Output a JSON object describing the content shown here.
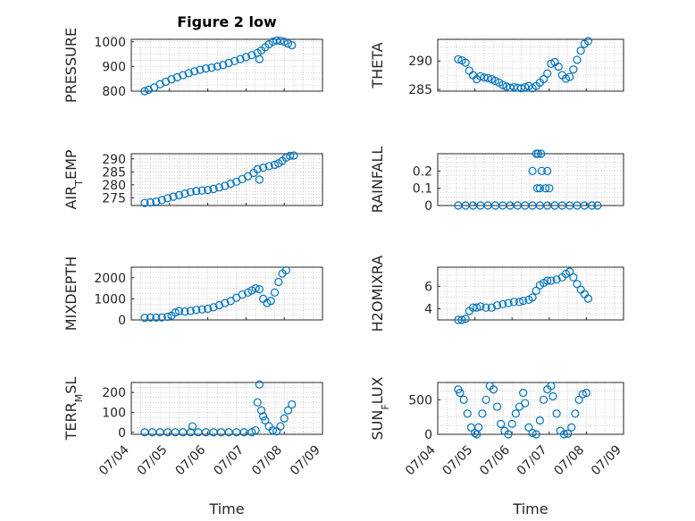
{
  "colors": {
    "marker": "#0072BD",
    "axis": "#262626",
    "grid": "#b0b0b0"
  },
  "chart_data": [
    {
      "id": "pressure",
      "type": "scatter",
      "title": "Figure 2 low",
      "ylabel": "PRESSURE",
      "xlabel": "",
      "ylim": [
        800,
        1010
      ],
      "yticks": [
        800,
        900,
        1000
      ],
      "xlim": [
        0,
        5
      ],
      "xticks": [
        0,
        1,
        2,
        3,
        4,
        5
      ],
      "xticklabels": [],
      "points": [
        [
          0.35,
          800
        ],
        [
          0.45,
          806
        ],
        [
          0.6,
          815
        ],
        [
          0.75,
          828
        ],
        [
          0.9,
          838
        ],
        [
          1.05,
          848
        ],
        [
          1.2,
          856
        ],
        [
          1.35,
          865
        ],
        [
          1.5,
          873
        ],
        [
          1.65,
          880
        ],
        [
          1.8,
          887
        ],
        [
          1.95,
          892
        ],
        [
          2.1,
          895
        ],
        [
          2.25,
          900
        ],
        [
          2.4,
          906
        ],
        [
          2.55,
          914
        ],
        [
          2.7,
          922
        ],
        [
          2.85,
          930
        ],
        [
          3.0,
          938
        ],
        [
          3.15,
          946
        ],
        [
          3.3,
          955
        ],
        [
          3.35,
          930
        ],
        [
          3.4,
          965
        ],
        [
          3.5,
          978
        ],
        [
          3.6,
          990
        ],
        [
          3.7,
          1000
        ],
        [
          3.8,
          1005
        ],
        [
          3.9,
          1004
        ],
        [
          4.0,
          1000
        ],
        [
          4.1,
          993
        ],
        [
          4.2,
          986
        ]
      ]
    },
    {
      "id": "theta",
      "type": "scatter",
      "title": "",
      "ylabel": "THETA",
      "xlabel": "",
      "ylim": [
        284.7,
        293.8
      ],
      "yticks": [
        285,
        290
      ],
      "xlim": [
        0,
        5
      ],
      "xticks": [
        0,
        1,
        2,
        3,
        4,
        5
      ],
      "xticklabels": [],
      "points": [
        [
          0.55,
          290.3
        ],
        [
          0.65,
          290.1
        ],
        [
          0.75,
          289.7
        ],
        [
          0.85,
          288.3
        ],
        [
          0.95,
          287.5
        ],
        [
          1.05,
          286.8
        ],
        [
          1.15,
          287.3
        ],
        [
          1.25,
          287.1
        ],
        [
          1.35,
          287.0
        ],
        [
          1.45,
          286.8
        ],
        [
          1.55,
          286.5
        ],
        [
          1.65,
          286.2
        ],
        [
          1.75,
          285.8
        ],
        [
          1.85,
          285.5
        ],
        [
          1.95,
          285.3
        ],
        [
          2.05,
          285.4
        ],
        [
          2.15,
          285.3
        ],
        [
          2.25,
          285.2
        ],
        [
          2.35,
          285.4
        ],
        [
          2.45,
          285.6
        ],
        [
          2.55,
          285.2
        ],
        [
          2.65,
          285.6
        ],
        [
          2.75,
          286.2
        ],
        [
          2.85,
          286.8
        ],
        [
          2.95,
          287.8
        ],
        [
          3.05,
          289.5
        ],
        [
          3.15,
          289.8
        ],
        [
          3.25,
          289.0
        ],
        [
          3.35,
          287.5
        ],
        [
          3.45,
          286.9
        ],
        [
          3.55,
          287.2
        ],
        [
          3.65,
          288.5
        ],
        [
          3.75,
          290.2
        ],
        [
          3.85,
          291.8
        ],
        [
          3.95,
          293.0
        ],
        [
          4.05,
          293.5
        ]
      ]
    },
    {
      "id": "air_temp",
      "type": "scatter",
      "title": "",
      "ylabel": "AIR_TEMP",
      "xlabel": "",
      "ylim": [
        272,
        292
      ],
      "yticks": [
        275,
        280,
        285,
        290
      ],
      "xlim": [
        0,
        5
      ],
      "xticks": [
        0,
        1,
        2,
        3,
        4,
        5
      ],
      "xticklabels": [],
      "points": [
        [
          0.35,
          273.0
        ],
        [
          0.5,
          273.2
        ],
        [
          0.65,
          273.5
        ],
        [
          0.8,
          274.1
        ],
        [
          0.95,
          274.8
        ],
        [
          1.1,
          275.4
        ],
        [
          1.25,
          276.0
        ],
        [
          1.4,
          276.6
        ],
        [
          1.55,
          277.2
        ],
        [
          1.7,
          277.6
        ],
        [
          1.85,
          277.8
        ],
        [
          2.0,
          278.0
        ],
        [
          2.15,
          278.4
        ],
        [
          2.3,
          279.0
        ],
        [
          2.45,
          279.6
        ],
        [
          2.6,
          280.4
        ],
        [
          2.75,
          281.2
        ],
        [
          2.9,
          282.2
        ],
        [
          3.05,
          283.3
        ],
        [
          3.2,
          284.6
        ],
        [
          3.3,
          286.0
        ],
        [
          3.35,
          282.0
        ],
        [
          3.45,
          286.6
        ],
        [
          3.6,
          287.2
        ],
        [
          3.75,
          287.7
        ],
        [
          3.85,
          288.3
        ],
        [
          3.95,
          289.2
        ],
        [
          4.05,
          290.5
        ],
        [
          4.15,
          291.2
        ],
        [
          4.25,
          291.3
        ]
      ]
    },
    {
      "id": "rainfall",
      "type": "scatter",
      "title": "",
      "ylabel": "RAINFALL",
      "xlabel": "",
      "ylim": [
        0,
        0.3
      ],
      "yticks": [
        0,
        0.1,
        0.2
      ],
      "xlim": [
        0,
        5
      ],
      "xticks": [
        0,
        1,
        2,
        3,
        4,
        5
      ],
      "xticklabels": [],
      "points": [
        [
          0.55,
          0
        ],
        [
          0.75,
          0
        ],
        [
          0.95,
          0
        ],
        [
          1.15,
          0
        ],
        [
          1.35,
          0
        ],
        [
          1.55,
          0
        ],
        [
          1.75,
          0
        ],
        [
          1.95,
          0
        ],
        [
          2.15,
          0
        ],
        [
          2.35,
          0
        ],
        [
          2.55,
          0
        ],
        [
          2.75,
          0
        ],
        [
          2.95,
          0
        ],
        [
          3.15,
          0
        ],
        [
          3.35,
          0
        ],
        [
          3.55,
          0
        ],
        [
          3.75,
          0
        ],
        [
          3.95,
          0
        ],
        [
          4.15,
          0
        ],
        [
          4.3,
          0
        ],
        [
          2.55,
          0.2
        ],
        [
          2.65,
          0.3
        ],
        [
          2.7,
          0.3
        ],
        [
          2.78,
          0.3
        ],
        [
          2.68,
          0.1
        ],
        [
          2.75,
          0.1
        ],
        [
          2.8,
          0.2
        ],
        [
          2.9,
          0.1
        ],
        [
          2.95,
          0.2
        ],
        [
          3.0,
          0.1
        ]
      ]
    },
    {
      "id": "mixdepth",
      "type": "scatter",
      "title": "",
      "ylabel": "MIXDEPTH",
      "xlabel": "",
      "ylim": [
        0,
        2500
      ],
      "yticks": [
        0,
        1000,
        2000
      ],
      "xlim": [
        0,
        5
      ],
      "xticks": [
        0,
        1,
        2,
        3,
        4,
        5
      ],
      "xticklabels": [],
      "points": [
        [
          0.35,
          100
        ],
        [
          0.5,
          110
        ],
        [
          0.65,
          110
        ],
        [
          0.8,
          120
        ],
        [
          0.95,
          150
        ],
        [
          1.05,
          200
        ],
        [
          1.15,
          350
        ],
        [
          1.25,
          420
        ],
        [
          1.4,
          400
        ],
        [
          1.55,
          430
        ],
        [
          1.7,
          480
        ],
        [
          1.85,
          500
        ],
        [
          2.0,
          530
        ],
        [
          2.15,
          600
        ],
        [
          2.3,
          700
        ],
        [
          2.45,
          800
        ],
        [
          2.6,
          900
        ],
        [
          2.75,
          1050
        ],
        [
          2.9,
          1200
        ],
        [
          3.05,
          1300
        ],
        [
          3.15,
          1400
        ],
        [
          3.25,
          1500
        ],
        [
          3.35,
          1450
        ],
        [
          3.45,
          1000
        ],
        [
          3.55,
          800
        ],
        [
          3.65,
          900
        ],
        [
          3.75,
          1300
        ],
        [
          3.85,
          1800
        ],
        [
          3.95,
          2200
        ],
        [
          4.05,
          2350
        ]
      ]
    },
    {
      "id": "h2omixra",
      "type": "scatter",
      "title": "",
      "ylabel": "H2OMIXRA",
      "xlabel": "",
      "ylim": [
        3,
        7.7
      ],
      "yticks": [
        4,
        6
      ],
      "xlim": [
        0,
        5
      ],
      "xticks": [
        0,
        1,
        2,
        3,
        4,
        5
      ],
      "xticklabels": [],
      "points": [
        [
          0.55,
          3.0
        ],
        [
          0.65,
          3.0
        ],
        [
          0.75,
          3.1
        ],
        [
          0.85,
          3.8
        ],
        [
          0.95,
          4.1
        ],
        [
          1.05,
          4.1
        ],
        [
          1.15,
          4.2
        ],
        [
          1.3,
          4.1
        ],
        [
          1.45,
          4.1
        ],
        [
          1.6,
          4.3
        ],
        [
          1.75,
          4.4
        ],
        [
          1.9,
          4.5
        ],
        [
          2.05,
          4.6
        ],
        [
          2.2,
          4.6
        ],
        [
          2.3,
          4.7
        ],
        [
          2.45,
          4.8
        ],
        [
          2.55,
          5.0
        ],
        [
          2.65,
          5.6
        ],
        [
          2.75,
          6.1
        ],
        [
          2.85,
          6.3
        ],
        [
          2.95,
          6.5
        ],
        [
          3.05,
          6.5
        ],
        [
          3.2,
          6.6
        ],
        [
          3.35,
          6.8
        ],
        [
          3.45,
          7.1
        ],
        [
          3.55,
          7.3
        ],
        [
          3.65,
          6.8
        ],
        [
          3.75,
          6.2
        ],
        [
          3.85,
          5.7
        ],
        [
          3.95,
          5.3
        ],
        [
          4.05,
          4.9
        ]
      ]
    },
    {
      "id": "terr_msl",
      "type": "scatter",
      "title": "",
      "ylabel": "TERR_MSL",
      "xlabel": "Time",
      "ylim": [
        -10,
        250
      ],
      "yticks": [
        0,
        100,
        200
      ],
      "xlim": [
        0,
        5
      ],
      "xticks": [
        0,
        1,
        2,
        3,
        4,
        5
      ],
      "xticklabels": [
        "07/04",
        "07/05",
        "07/06",
        "07/07",
        "07/08",
        "07/09"
      ],
      "points": [
        [
          0.35,
          0
        ],
        [
          0.55,
          0
        ],
        [
          0.75,
          0
        ],
        [
          0.95,
          0
        ],
        [
          1.15,
          0
        ],
        [
          1.35,
          0
        ],
        [
          1.55,
          0
        ],
        [
          1.75,
          0
        ],
        [
          1.95,
          0
        ],
        [
          2.15,
          0
        ],
        [
          2.35,
          0
        ],
        [
          2.55,
          0
        ],
        [
          2.75,
          0
        ],
        [
          2.95,
          0
        ],
        [
          3.15,
          0
        ],
        [
          1.6,
          30
        ],
        [
          3.25,
          10
        ],
        [
          3.3,
          150
        ],
        [
          3.35,
          240
        ],
        [
          3.4,
          110
        ],
        [
          3.45,
          80
        ],
        [
          3.5,
          60
        ],
        [
          3.6,
          30
        ],
        [
          3.7,
          10
        ],
        [
          3.8,
          5
        ],
        [
          3.9,
          30
        ],
        [
          4.0,
          70
        ],
        [
          4.1,
          110
        ],
        [
          4.2,
          140
        ]
      ]
    },
    {
      "id": "sun_flux",
      "type": "scatter",
      "title": "",
      "ylabel": "SUN_FLUX",
      "xlabel": "Time",
      "ylim": [
        0,
        750
      ],
      "yticks": [
        0,
        500
      ],
      "xlim": [
        0,
        5
      ],
      "xticks": [
        0,
        1,
        2,
        3,
        4,
        5
      ],
      "xticklabels": [
        "07/04",
        "07/05",
        "07/06",
        "07/07",
        "07/08",
        "07/09"
      ],
      "points": [
        [
          0.55,
          650
        ],
        [
          0.6,
          600
        ],
        [
          0.7,
          500
        ],
        [
          0.8,
          300
        ],
        [
          0.9,
          100
        ],
        [
          1.0,
          20
        ],
        [
          1.05,
          0
        ],
        [
          1.1,
          100
        ],
        [
          1.2,
          300
        ],
        [
          1.3,
          500
        ],
        [
          1.4,
          700
        ],
        [
          1.5,
          650
        ],
        [
          1.6,
          400
        ],
        [
          1.7,
          150
        ],
        [
          1.8,
          50
        ],
        [
          1.9,
          0
        ],
        [
          2.0,
          150
        ],
        [
          2.1,
          300
        ],
        [
          2.2,
          400
        ],
        [
          2.3,
          600
        ],
        [
          2.35,
          450
        ],
        [
          2.45,
          100
        ],
        [
          2.55,
          20
        ],
        [
          2.65,
          0
        ],
        [
          2.75,
          200
        ],
        [
          2.85,
          500
        ],
        [
          2.95,
          650
        ],
        [
          3.05,
          700
        ],
        [
          3.1,
          550
        ],
        [
          3.2,
          300
        ],
        [
          3.3,
          50
        ],
        [
          3.4,
          0
        ],
        [
          3.5,
          10
        ],
        [
          3.6,
          100
        ],
        [
          3.7,
          300
        ],
        [
          3.8,
          500
        ],
        [
          3.9,
          580
        ],
        [
          4.0,
          600
        ]
      ]
    }
  ]
}
